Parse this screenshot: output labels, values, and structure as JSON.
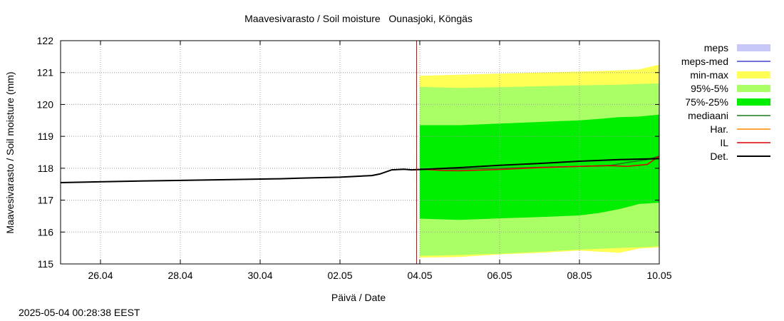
{
  "chart_data": {
    "type": "area",
    "title": "Maavesivarasto / Soil moisture   Ounasjoki, Köngäs",
    "xlabel": "Päivä / Date",
    "ylabel": "Maavesivarasto / Soil moisture (mm)",
    "footer": "2025-05-04 00:28:38 EEST",
    "x_unit": "days",
    "xlim": [
      25.0,
      40.0
    ],
    "ylim": [
      115,
      122
    ],
    "yticks": [
      115,
      116,
      117,
      118,
      119,
      120,
      121,
      122
    ],
    "xticks": [
      {
        "label": "26.04",
        "x": 26
      },
      {
        "label": "28.04",
        "x": 28
      },
      {
        "label": "30.04",
        "x": 30
      },
      {
        "label": "02.05",
        "x": 32
      },
      {
        "label": "04.05",
        "x": 34
      },
      {
        "label": "06.05",
        "x": 36
      },
      {
        "label": "08.05",
        "x": 38
      },
      {
        "label": "10.05",
        "x": 40
      }
    ],
    "grid": true,
    "legend_position": "right",
    "now_line": {
      "x": 33.92,
      "color": "#dd0000"
    },
    "legend": [
      {
        "label": "meps",
        "kind": "box",
        "color": "#c8c8f8"
      },
      {
        "label": "meps-med",
        "kind": "line",
        "color": "#4444cc"
      },
      {
        "label": "min-max",
        "kind": "box",
        "color": "#ffff55"
      },
      {
        "label": "95%-5%",
        "kind": "box",
        "color": "#aaff66"
      },
      {
        "label": "75%-25%",
        "kind": "box",
        "color": "#00ee00"
      },
      {
        "label": "mediaani",
        "kind": "line",
        "color": "#1a7a1a"
      },
      {
        "label": "Har.",
        "kind": "line",
        "color": "#ff8800"
      },
      {
        "label": "IL",
        "kind": "line",
        "color": "#dd0000"
      },
      {
        "label": "Det.",
        "kind": "line",
        "color": "#000000"
      }
    ],
    "bands": [
      {
        "name": "min-max",
        "color": "#ffff55",
        "x": [
          34.0,
          35.0,
          36.0,
          37.0,
          38.0,
          39.0,
          39.5,
          40.0
        ],
        "low": [
          115.2,
          115.22,
          115.3,
          115.35,
          115.42,
          115.35,
          115.48,
          115.52
        ],
        "high": [
          120.9,
          120.93,
          120.97,
          121.0,
          121.03,
          121.07,
          121.1,
          121.25
        ]
      },
      {
        "name": "95%-5%",
        "color": "#aaff66",
        "x": [
          34.0,
          35.0,
          36.0,
          37.0,
          38.0,
          39.0,
          39.5,
          40.0
        ],
        "low": [
          115.25,
          115.28,
          115.32,
          115.38,
          115.45,
          115.5,
          115.52,
          115.55
        ],
        "high": [
          120.55,
          120.52,
          120.54,
          120.57,
          120.6,
          120.62,
          120.64,
          120.66
        ]
      },
      {
        "name": "75%-25%",
        "color": "#00ee00",
        "x": [
          34.0,
          35.0,
          36.0,
          37.0,
          38.0,
          38.5,
          39.0,
          39.5,
          40.0
        ],
        "low": [
          116.42,
          116.38,
          116.43,
          116.47,
          116.52,
          116.6,
          116.72,
          116.88,
          116.92
        ],
        "high": [
          119.35,
          119.35,
          119.4,
          119.45,
          119.5,
          119.55,
          119.6,
          119.62,
          119.68
        ]
      }
    ],
    "series": [
      {
        "name": "mediaani",
        "color": "#1a7a1a",
        "x": [
          34.0,
          35.0,
          36.0,
          37.0,
          38.0,
          38.8,
          39.2,
          39.7,
          40.0
        ],
        "y": [
          117.98,
          117.98,
          118.0,
          118.03,
          118.06,
          118.09,
          118.18,
          118.27,
          118.38
        ]
      },
      {
        "name": "IL",
        "color": "#dd0000",
        "x": [
          34.0,
          34.6,
          35.0,
          36.0,
          37.0,
          38.0,
          38.8,
          39.2,
          39.7,
          40.0
        ],
        "y": [
          117.97,
          117.93,
          117.92,
          117.96,
          118.02,
          118.06,
          118.08,
          118.06,
          118.12,
          118.38
        ]
      },
      {
        "name": "Det.",
        "color": "#000000",
        "x": [
          25.0,
          27.0,
          29.0,
          30.5,
          31.0,
          32.0,
          32.8,
          33.0,
          33.3,
          33.6,
          33.8,
          34.0,
          35.0,
          36.0,
          37.0,
          38.0,
          39.0,
          40.0
        ],
        "y": [
          117.55,
          117.6,
          117.64,
          117.67,
          117.69,
          117.72,
          117.77,
          117.82,
          117.95,
          117.97,
          117.95,
          117.96,
          118.02,
          118.09,
          118.15,
          118.22,
          118.27,
          118.3
        ]
      }
    ]
  }
}
